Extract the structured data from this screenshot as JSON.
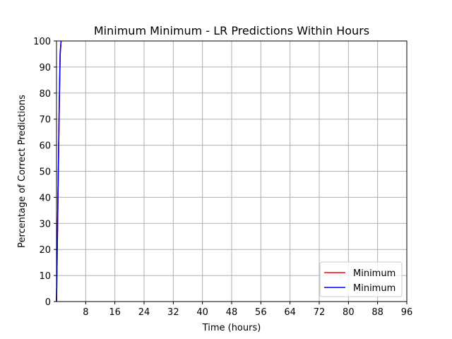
{
  "chart_data": {
    "type": "line",
    "title": "Minimum Minimum - LR Predictions Within Hours",
    "xlabel": "Time (hours)",
    "ylabel": "Percentage of Correct Predictions",
    "xlim": [
      0,
      96
    ],
    "ylim": [
      0,
      100
    ],
    "xticks": [
      8,
      16,
      24,
      32,
      40,
      48,
      56,
      64,
      72,
      80,
      88,
      96
    ],
    "yticks": [
      0,
      10,
      20,
      30,
      40,
      50,
      60,
      70,
      80,
      90,
      100
    ],
    "grid": true,
    "legend_position": "bottom-right",
    "series": [
      {
        "name": "Minimum",
        "color": "#ff0000",
        "x": [
          0,
          0.25,
          0.5,
          0.75,
          1.0,
          1.25
        ],
        "y": [
          0,
          25,
          50,
          75,
          95,
          100
        ]
      },
      {
        "name": "Minimum",
        "color": "#0000ff",
        "x": [
          0,
          0.25,
          0.5,
          0.75,
          1.0,
          1.25
        ],
        "y": [
          0,
          25,
          50,
          75,
          95,
          100
        ]
      }
    ]
  }
}
